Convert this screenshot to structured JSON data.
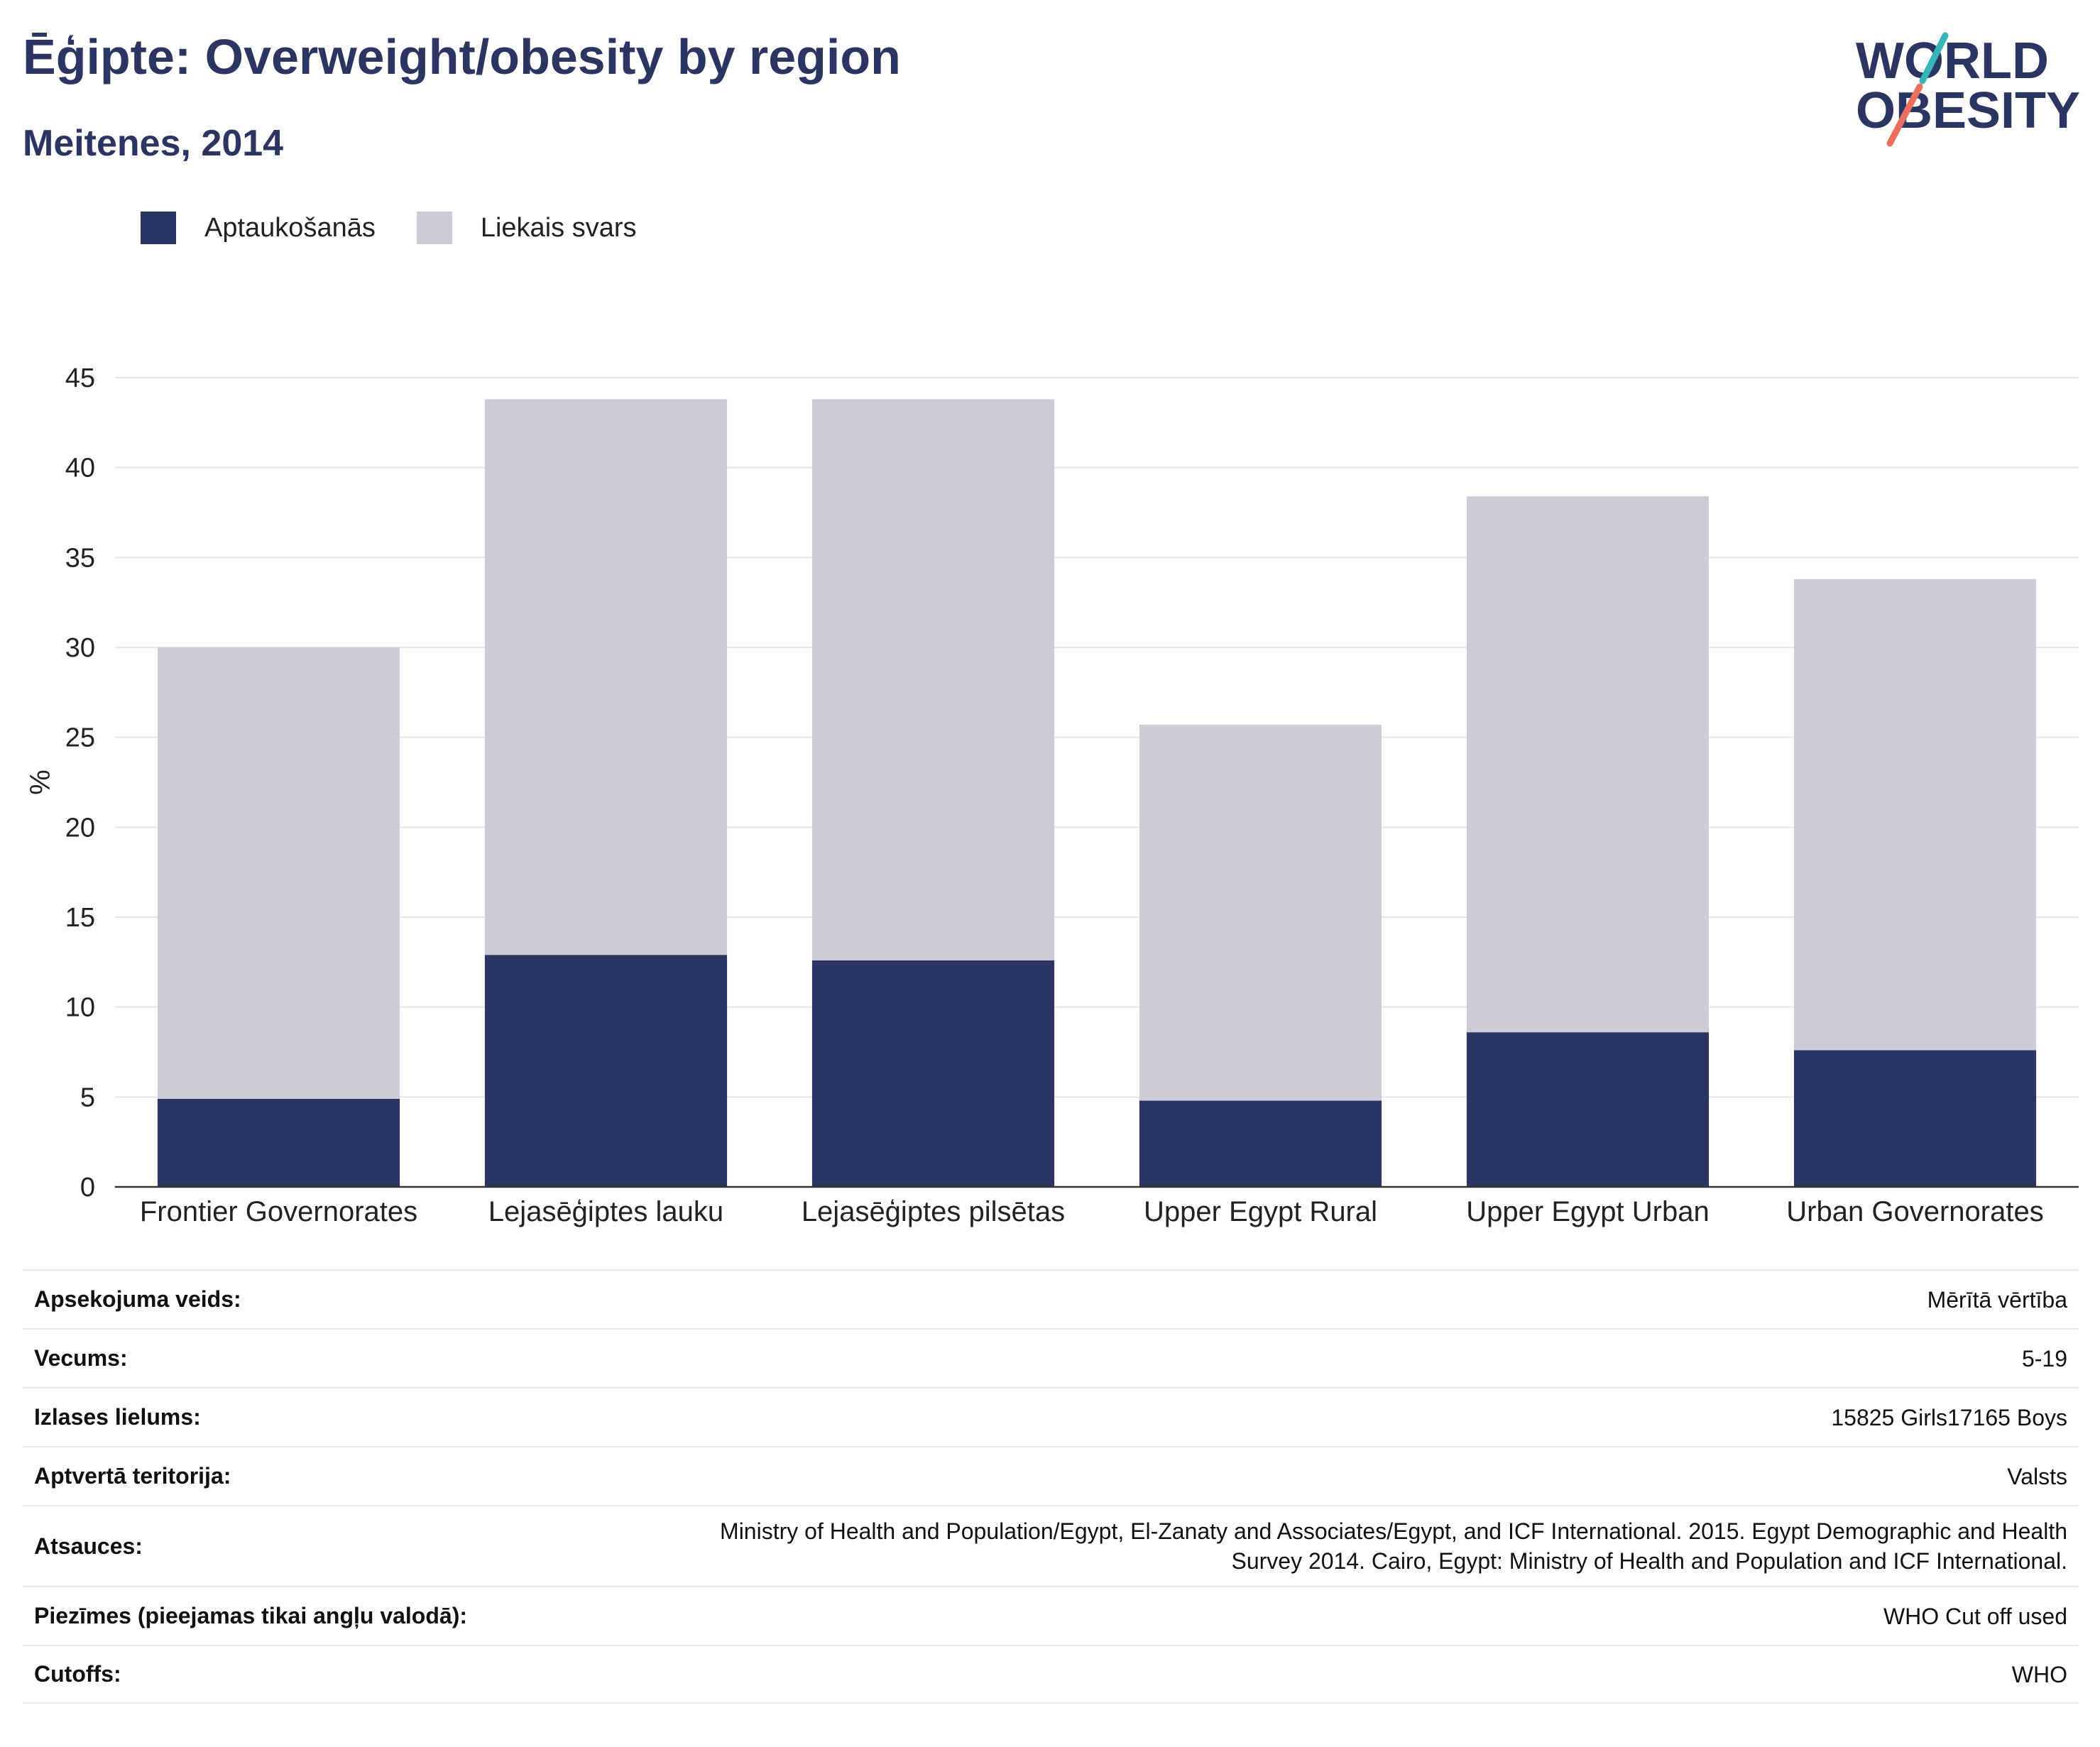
{
  "header": {
    "title": "Ēģipte: Overweight/obesity by region",
    "subtitle": "Meitenes, 2014"
  },
  "logo": {
    "line1": "WORLD",
    "line2": "OBESITY"
  },
  "legend": {
    "items": [
      {
        "label": "Aptaukošanās",
        "color": "#2b3561"
      },
      {
        "label": "Liekais svars",
        "color": "#cbccd8"
      }
    ]
  },
  "chart_data": {
    "type": "bar",
    "stacked": true,
    "categories": [
      "Frontier Governorates",
      "Lejasēģiptes lauku",
      "Lejasēģiptes pilsētas",
      "Upper Egypt Rural",
      "Upper Egypt Urban",
      "Urban Governorates"
    ],
    "series": [
      {
        "name": "Aptaukošanās",
        "color": "#2b3561",
        "values": [
          4.9,
          12.9,
          12.6,
          4.8,
          8.6,
          7.6
        ]
      },
      {
        "name": "Liekais svars",
        "color": "#cbccd8",
        "values": [
          25.1,
          30.9,
          31.2,
          20.9,
          29.8,
          26.2
        ]
      }
    ],
    "ylabel": "%",
    "xlabel": "",
    "ylim": [
      0,
      45
    ],
    "yticks": [
      0,
      5,
      10,
      15,
      20,
      25,
      30,
      35,
      40,
      45
    ],
    "grid": true,
    "legend_position": "top-left"
  },
  "info": {
    "rows": [
      {
        "key": "Apsekojuma veids:",
        "value": "Mērītā vērtība"
      },
      {
        "key": "Vecums:",
        "value": "5-19"
      },
      {
        "key": "Izlases lielums:",
        "value": "15825 Girls17165 Boys"
      },
      {
        "key": "Aptvertā teritorija:",
        "value": "Valsts"
      },
      {
        "key": "Atsauces:",
        "value_lines": [
          "Ministry of Health and Population/Egypt, El-Zanaty and Associates/Egypt, and ICF International. 2015. Egypt Demographic and Health",
          "Survey 2014. Cairo, Egypt: Ministry of Health and Population and ICF International."
        ]
      },
      {
        "key": "Piezīmes (pieejamas tikai angļu valodā):",
        "value": "WHO Cut off used"
      },
      {
        "key": "Cutoffs:",
        "value": "WHO"
      }
    ]
  }
}
